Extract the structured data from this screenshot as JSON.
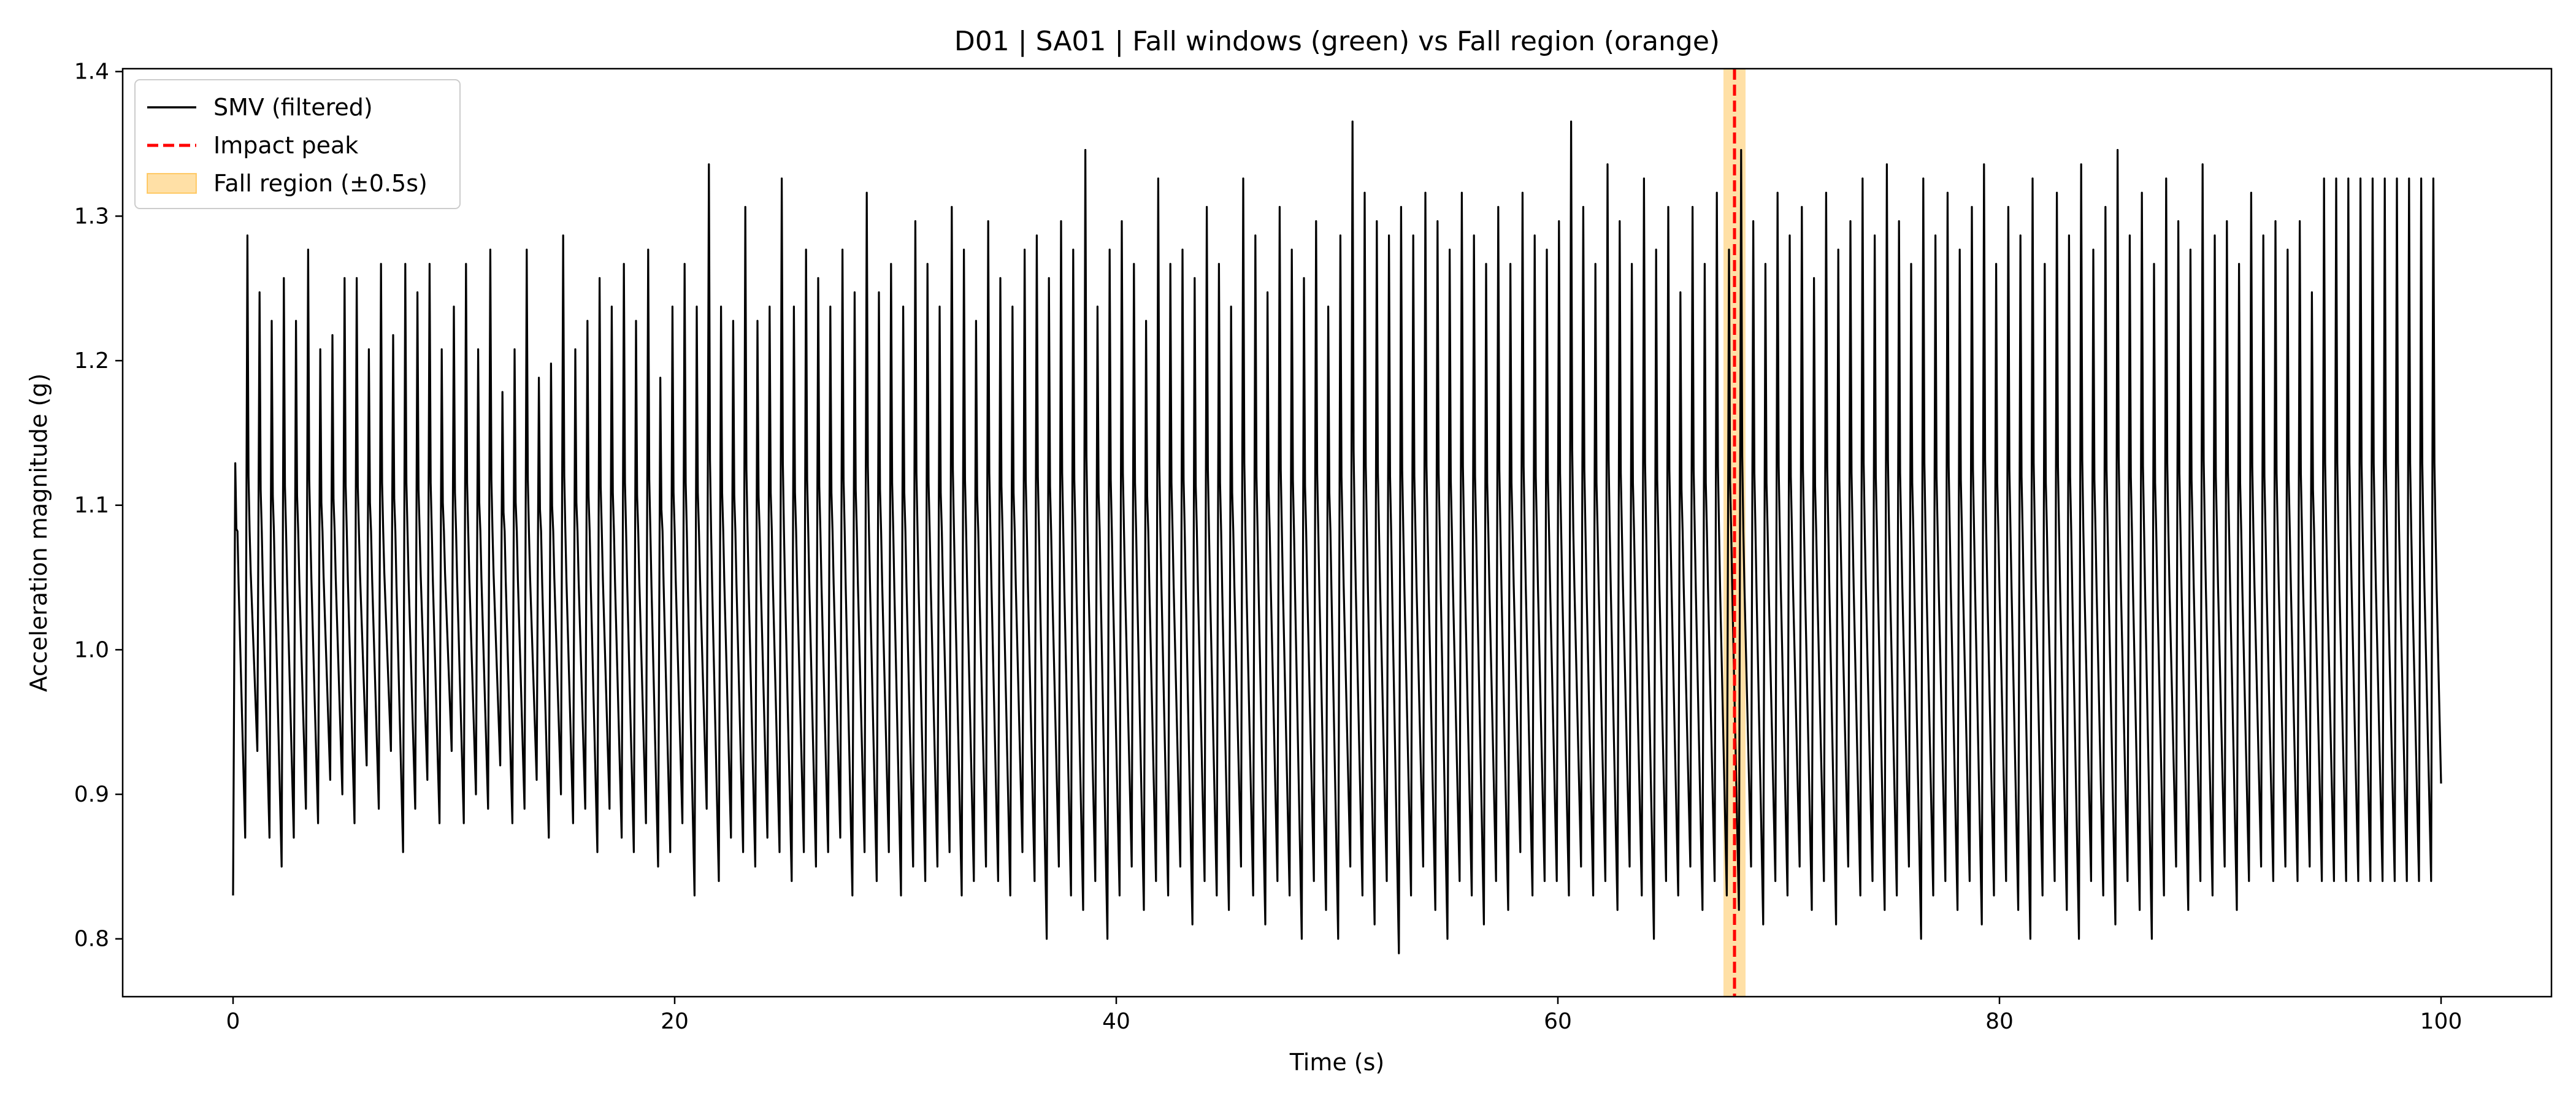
{
  "chart_data": {
    "type": "line",
    "title": "D01 | SA01 | Fall windows (green) vs Fall region (orange)",
    "xlabel": "Time (s)",
    "ylabel": "Acceleration magnitude (g)",
    "xlim": [
      -5,
      105
    ],
    "ylim": [
      0.76,
      1.402
    ],
    "xticks": [
      0,
      20,
      40,
      60,
      80,
      100
    ],
    "yticks": [
      0.8,
      0.9,
      1.0,
      1.1,
      1.2,
      1.3,
      1.4
    ],
    "xtick_labels": [
      "0",
      "20",
      "40",
      "60",
      "80",
      "100"
    ],
    "ytick_labels": [
      "0.8",
      "0.9",
      "1.0",
      "1.1",
      "1.2",
      "1.3",
      "1.4"
    ],
    "grid": false,
    "legend_position": "upper-left",
    "series": [
      {
        "name": "SMV (filtered)",
        "color": "#000000",
        "style": "solid",
        "duration_s": 100,
        "sample_rate_hz": 20,
        "step_period_s": 0.55,
        "peaks_g": [
          1.13,
          1.29,
          1.25,
          1.23,
          1.26,
          1.23,
          1.28,
          1.21,
          1.22,
          1.26,
          1.26,
          1.21,
          1.27,
          1.22,
          1.27,
          1.25,
          1.27,
          1.21,
          1.24,
          1.27,
          1.21,
          1.28,
          1.18,
          1.21,
          1.28,
          1.19,
          1.2,
          1.29,
          1.21,
          1.23,
          1.26,
          1.24,
          1.27,
          1.23,
          1.28,
          1.19,
          1.24,
          1.27,
          1.24,
          1.34,
          1.24,
          1.23,
          1.31,
          1.23,
          1.24,
          1.33,
          1.24,
          1.28,
          1.26,
          1.24,
          1.28,
          1.25,
          1.32,
          1.25,
          1.27,
          1.24,
          1.3,
          1.27,
          1.24,
          1.31,
          1.28,
          1.23,
          1.3,
          1.26,
          1.24,
          1.28,
          1.29,
          1.26,
          1.3,
          1.28,
          1.35,
          1.24,
          1.28,
          1.3,
          1.27,
          1.23,
          1.33,
          1.27,
          1.28,
          1.26,
          1.31,
          1.27,
          1.24,
          1.33,
          1.29,
          1.25,
          1.31,
          1.28,
          1.26,
          1.3,
          1.24,
          1.29,
          1.37,
          1.32,
          1.3,
          1.29,
          1.31,
          1.29,
          1.32,
          1.3,
          1.28,
          1.32,
          1.29,
          1.27,
          1.31,
          1.27,
          1.32,
          1.29,
          1.28,
          1.3,
          1.37,
          1.31,
          1.27,
          1.34,
          1.3,
          1.27,
          1.33,
          1.28,
          1.31,
          1.25,
          1.31,
          1.27,
          1.32,
          1.28,
          1.35,
          1.3,
          1.27,
          1.32,
          1.29,
          1.31,
          1.26,
          1.32,
          1.28,
          1.3,
          1.33,
          1.29,
          1.34,
          1.3,
          1.27,
          1.33,
          1.29,
          1.32,
          1.28,
          1.31,
          1.34,
          1.27,
          1.31,
          1.29,
          1.33,
          1.27,
          1.32,
          1.29,
          1.34,
          1.28,
          1.31,
          1.35,
          1.29,
          1.32,
          1.27,
          1.33,
          1.3,
          1.28,
          1.34,
          1.29,
          1.3,
          1.27,
          1.32,
          1.29,
          1.3,
          1.28,
          1.3,
          1.25,
          1.33
        ],
        "troughs_g": [
          0.83,
          0.87,
          0.93,
          0.87,
          0.85,
          0.87,
          0.89,
          0.88,
          0.91,
          0.9,
          0.88,
          0.92,
          0.89,
          0.93,
          0.86,
          0.89,
          0.91,
          0.88,
          0.93,
          0.88,
          0.9,
          0.89,
          0.92,
          0.88,
          0.89,
          0.91,
          0.87,
          0.9,
          0.88,
          0.89,
          0.86,
          0.89,
          0.87,
          0.86,
          0.88,
          0.85,
          0.86,
          0.88,
          0.83,
          0.89,
          0.84,
          0.87,
          0.86,
          0.85,
          0.87,
          0.86,
          0.84,
          0.86,
          0.85,
          0.86,
          0.87,
          0.83,
          0.86,
          0.84,
          0.86,
          0.83,
          0.85,
          0.84,
          0.85,
          0.86,
          0.83,
          0.84,
          0.85,
          0.84,
          0.83,
          0.86,
          0.84,
          0.8,
          0.85,
          0.83,
          0.82,
          0.84,
          0.8,
          0.83,
          0.85,
          0.82,
          0.84,
          0.83,
          0.85,
          0.81,
          0.84,
          0.83,
          0.82,
          0.85,
          0.83,
          0.81,
          0.84,
          0.83,
          0.8,
          0.84,
          0.82,
          0.8,
          0.85,
          0.83,
          0.81,
          0.84,
          0.79,
          0.83,
          0.85,
          0.82,
          0.8,
          0.84,
          0.83,
          0.81,
          0.84,
          0.82,
          0.86,
          0.83,
          0.84,
          0.84,
          0.83,
          0.85,
          0.83,
          0.84,
          0.82,
          0.85,
          0.83,
          0.8,
          0.84,
          0.83,
          0.85,
          0.82,
          0.84,
          0.83,
          0.82,
          0.85,
          0.81,
          0.84,
          0.83,
          0.85,
          0.82,
          0.84,
          0.81,
          0.85,
          0.83,
          0.84,
          0.82,
          0.83,
          0.85,
          0.8,
          0.83,
          0.84,
          0.82,
          0.84,
          0.81,
          0.83,
          0.84,
          0.82,
          0.8,
          0.83,
          0.84,
          0.82,
          0.8,
          0.84,
          0.83,
          0.81,
          0.84,
          0.82,
          0.8,
          0.83,
          0.85,
          0.82,
          0.84,
          0.83,
          0.85,
          0.82,
          0.84,
          0.85,
          0.84,
          0.85,
          0.84,
          0.85,
          0.84
        ]
      },
      {
        "name": "Impact peak",
        "color": "#ff0000",
        "style": "dashed",
        "x": 68.0
      },
      {
        "name": "Fall region (±0.5s)",
        "color": "#ffa500",
        "style": "span",
        "x_range": [
          67.5,
          68.5
        ]
      }
    ]
  }
}
